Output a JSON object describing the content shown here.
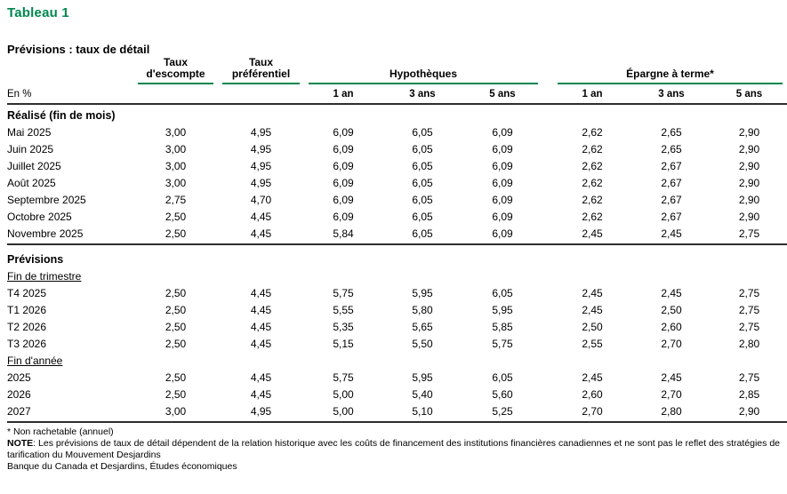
{
  "title": "Tableau 1",
  "subtitle": "Prévisions : taux de détail",
  "accent_color": "#00874e",
  "table": {
    "unit_label": "En %",
    "headers": {
      "discount": {
        "line1": "Taux",
        "line2": "d'escompte"
      },
      "prime": {
        "line1": "Taux",
        "line2": "préférentiel"
      },
      "mortgages": "Hypothèques",
      "term_savings": "Épargne à terme*",
      "terms": [
        "1 an",
        "3 ans",
        "5 ans"
      ]
    },
    "rows": [
      {
        "type": "heading",
        "label": "Réalisé (fin de mois)"
      },
      {
        "type": "data",
        "label": "Mai 2025",
        "values": [
          "3,00",
          "4,95",
          "6,09",
          "6,05",
          "6,09",
          "2,62",
          "2,65",
          "2,90"
        ]
      },
      {
        "type": "data",
        "label": "Juin 2025",
        "values": [
          "3,00",
          "4,95",
          "6,09",
          "6,05",
          "6,09",
          "2,62",
          "2,65",
          "2,90"
        ]
      },
      {
        "type": "data",
        "label": "Juillet 2025",
        "values": [
          "3,00",
          "4,95",
          "6,09",
          "6,05",
          "6,09",
          "2,62",
          "2,67",
          "2,90"
        ]
      },
      {
        "type": "data",
        "label": "Août 2025",
        "values": [
          "3,00",
          "4,95",
          "6,09",
          "6,05",
          "6,09",
          "2,62",
          "2,67",
          "2,90"
        ]
      },
      {
        "type": "data",
        "label": "Septembre 2025",
        "values": [
          "2,75",
          "4,70",
          "6,09",
          "6,05",
          "6,09",
          "2,62",
          "2,67",
          "2,90"
        ]
      },
      {
        "type": "data",
        "label": "Octobre 2025",
        "values": [
          "2,50",
          "4,45",
          "6,09",
          "6,05",
          "6,09",
          "2,62",
          "2,67",
          "2,90"
        ]
      },
      {
        "type": "data",
        "label": "Novembre 2025",
        "values": [
          "2,50",
          "4,45",
          "5,84",
          "6,05",
          "6,09",
          "2,45",
          "2,45",
          "2,75"
        ]
      },
      {
        "type": "divider"
      },
      {
        "type": "heading",
        "label": "Prévisions"
      },
      {
        "type": "subheading",
        "label": "Fin de trimestre"
      },
      {
        "type": "data",
        "label": "T4 2025",
        "values": [
          "2,50",
          "4,45",
          "5,75",
          "5,95",
          "6,05",
          "2,45",
          "2,45",
          "2,75"
        ]
      },
      {
        "type": "data",
        "label": "T1 2026",
        "values": [
          "2,50",
          "4,45",
          "5,55",
          "5,80",
          "5,95",
          "2,45",
          "2,50",
          "2,75"
        ]
      },
      {
        "type": "data",
        "label": "T2 2026",
        "values": [
          "2,50",
          "4,45",
          "5,35",
          "5,65",
          "5,85",
          "2,50",
          "2,60",
          "2,75"
        ]
      },
      {
        "type": "data",
        "label": "T3 2026",
        "values": [
          "2,50",
          "4,45",
          "5,15",
          "5,50",
          "5,75",
          "2,55",
          "2,70",
          "2,80"
        ]
      },
      {
        "type": "subheading",
        "label": "Fin d'année"
      },
      {
        "type": "data",
        "label": "2025",
        "values": [
          "2,50",
          "4,45",
          "5,75",
          "5,95",
          "6,05",
          "2,45",
          "2,45",
          "2,75"
        ]
      },
      {
        "type": "data",
        "label": "2026",
        "values": [
          "2,50",
          "4,45",
          "5,00",
          "5,40",
          "5,60",
          "2,60",
          "2,70",
          "2,85"
        ]
      },
      {
        "type": "data",
        "label": "2027",
        "values": [
          "3,00",
          "4,95",
          "5,00",
          "5,10",
          "5,25",
          "2,70",
          "2,80",
          "2,90"
        ]
      },
      {
        "type": "divider"
      }
    ]
  },
  "footnotes": {
    "asterisk": "* Non rachetable (annuel)",
    "note_label": "NOTE",
    "note_text": ": Les prévisions de taux de détail dépendent de la relation historique avec les coûts de financement des institutions financières canadiennes et ne sont pas le reflet des stratégies de tarification du Mouvement Desjardins",
    "sources": "Banque du Canada et Desjardins, Études économiques"
  }
}
